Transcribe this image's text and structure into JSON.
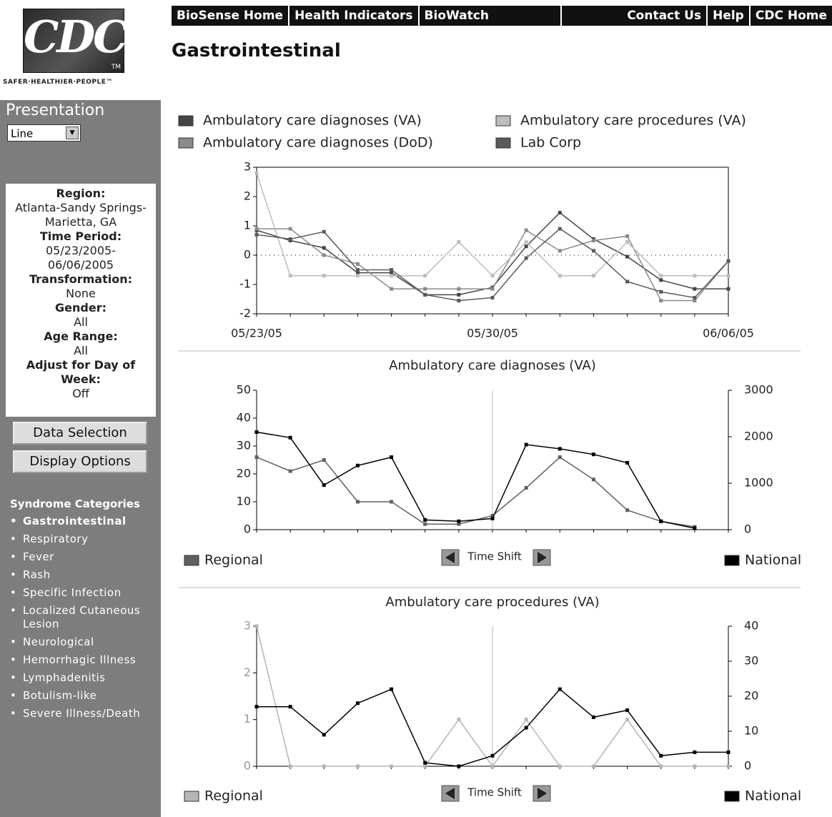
{
  "header": {
    "logo": "CDC",
    "trademark": "TM",
    "tagline": "SAFER·HEALTHIER·PEOPLE™",
    "nav_left": [
      "BioSense Home",
      "Health Indicators",
      "BioWatch"
    ],
    "nav_right": [
      "Contact Us",
      "Help",
      "CDC Home"
    ],
    "page_title": "Gastrointestinal"
  },
  "sidebar": {
    "presentation_label": "Presentation",
    "presentation_value": "Line",
    "info": [
      {
        "label": "Region:",
        "value": "Atlanta-Sandy Springs-Marietta, GA"
      },
      {
        "label": "Time Period:",
        "value": "05/23/2005-06/06/2005"
      },
      {
        "label": "Transformation:",
        "value": "None"
      },
      {
        "label": "Gender:",
        "value": "All"
      },
      {
        "label": "Age Range:",
        "value": "All"
      },
      {
        "label": "Adjust for Day of Week:",
        "value": "Off"
      }
    ],
    "buttons": [
      "Data Selection",
      "Display Options"
    ],
    "categories_title": "Syndrome Categories",
    "categories": [
      "Gastrointestinal",
      "Respiratory",
      "Fever",
      "Rash",
      "Specific Infection",
      "Localized Cutaneous Lesion",
      "Neurological",
      "Hemorrhagic Illness",
      "Lymphadenitis",
      "Botulism-like",
      "Severe Illness/Death"
    ]
  },
  "chart_data": [
    {
      "type": "line",
      "categories": [
        "05/23/05",
        null,
        null,
        null,
        null,
        null,
        null,
        "05/30/05",
        null,
        null,
        null,
        null,
        null,
        null,
        "06/06/05"
      ],
      "ylim": [
        -2,
        3
      ],
      "yticks": [
        -2,
        -1,
        0,
        1,
        2,
        3
      ],
      "series": [
        {
          "name": "Ambulatory care diagnoses (VA)",
          "color": "#454545",
          "values": [
            0.85,
            0.5,
            0.25,
            -0.6,
            -0.6,
            -1.35,
            -1.35,
            -1.1,
            0.3,
            1.45,
            0.55,
            -0.05,
            -0.85,
            -1.15,
            -1.15
          ]
        },
        {
          "name": "Ambulatory care diagnoses (DoD)",
          "color": "#8a8a8a",
          "values": [
            0.9,
            0.9,
            0.0,
            -0.3,
            -1.15,
            -1.15,
            -1.15,
            -1.15,
            0.85,
            0.15,
            0.5,
            0.65,
            -1.55,
            -1.55,
            -0.2
          ]
        },
        {
          "name": "Ambulatory care procedures (VA)",
          "color": "#bdbdbd",
          "values": [
            2.8,
            -0.7,
            -0.7,
            -0.7,
            -0.7,
            -0.7,
            0.45,
            -0.7,
            0.45,
            -0.7,
            -0.7,
            0.45,
            -0.7,
            -0.7,
            -0.7
          ]
        },
        {
          "name": "Lab Corp",
          "color": "#5a5a5a",
          "values": [
            0.7,
            0.55,
            0.8,
            -0.5,
            -0.5,
            -1.35,
            -1.55,
            -1.45,
            -0.1,
            0.9,
            0.15,
            -0.9,
            -1.25,
            -1.45,
            -0.2
          ]
        }
      ]
    },
    {
      "type": "line",
      "title": "Ambulatory care diagnoses (VA)",
      "control": "Time Shift",
      "ylim": [
        0,
        50
      ],
      "yticks": [
        0,
        10,
        20,
        30,
        40,
        50
      ],
      "y2lim": [
        0,
        3000
      ],
      "y2ticks": [
        0,
        1000,
        2000,
        3000
      ],
      "series": [
        {
          "name": "Regional",
          "color": "#606060",
          "values": [
            26,
            21,
            25,
            10,
            10,
            2,
            2,
            5,
            15,
            26,
            18,
            7,
            3,
            1,
            null
          ]
        },
        {
          "name": "National",
          "color": "#000000",
          "axis": "y2",
          "values": [
            2100,
            1980,
            960,
            1380,
            1560,
            210,
            180,
            240,
            1830,
            1740,
            1620,
            1440,
            180,
            30,
            null
          ]
        }
      ]
    },
    {
      "type": "line",
      "title": "Ambulatory care procedures (VA)",
      "control": "Time Shift",
      "ylim": [
        0,
        3
      ],
      "yticks": [
        0,
        1,
        2,
        3
      ],
      "y2lim": [
        0,
        40
      ],
      "y2ticks": [
        0,
        10,
        20,
        30,
        40
      ],
      "series": [
        {
          "name": "Regional",
          "color": "#b5b5b5",
          "values": [
            3,
            0,
            0,
            0,
            0,
            0,
            1,
            0,
            1,
            0,
            0,
            1,
            0,
            0,
            0
          ]
        },
        {
          "name": "National",
          "color": "#000000",
          "axis": "y2",
          "values": [
            17,
            17,
            9,
            18,
            22,
            1,
            0,
            3,
            11,
            22,
            14,
            16,
            3,
            4,
            4
          ]
        }
      ]
    }
  ]
}
